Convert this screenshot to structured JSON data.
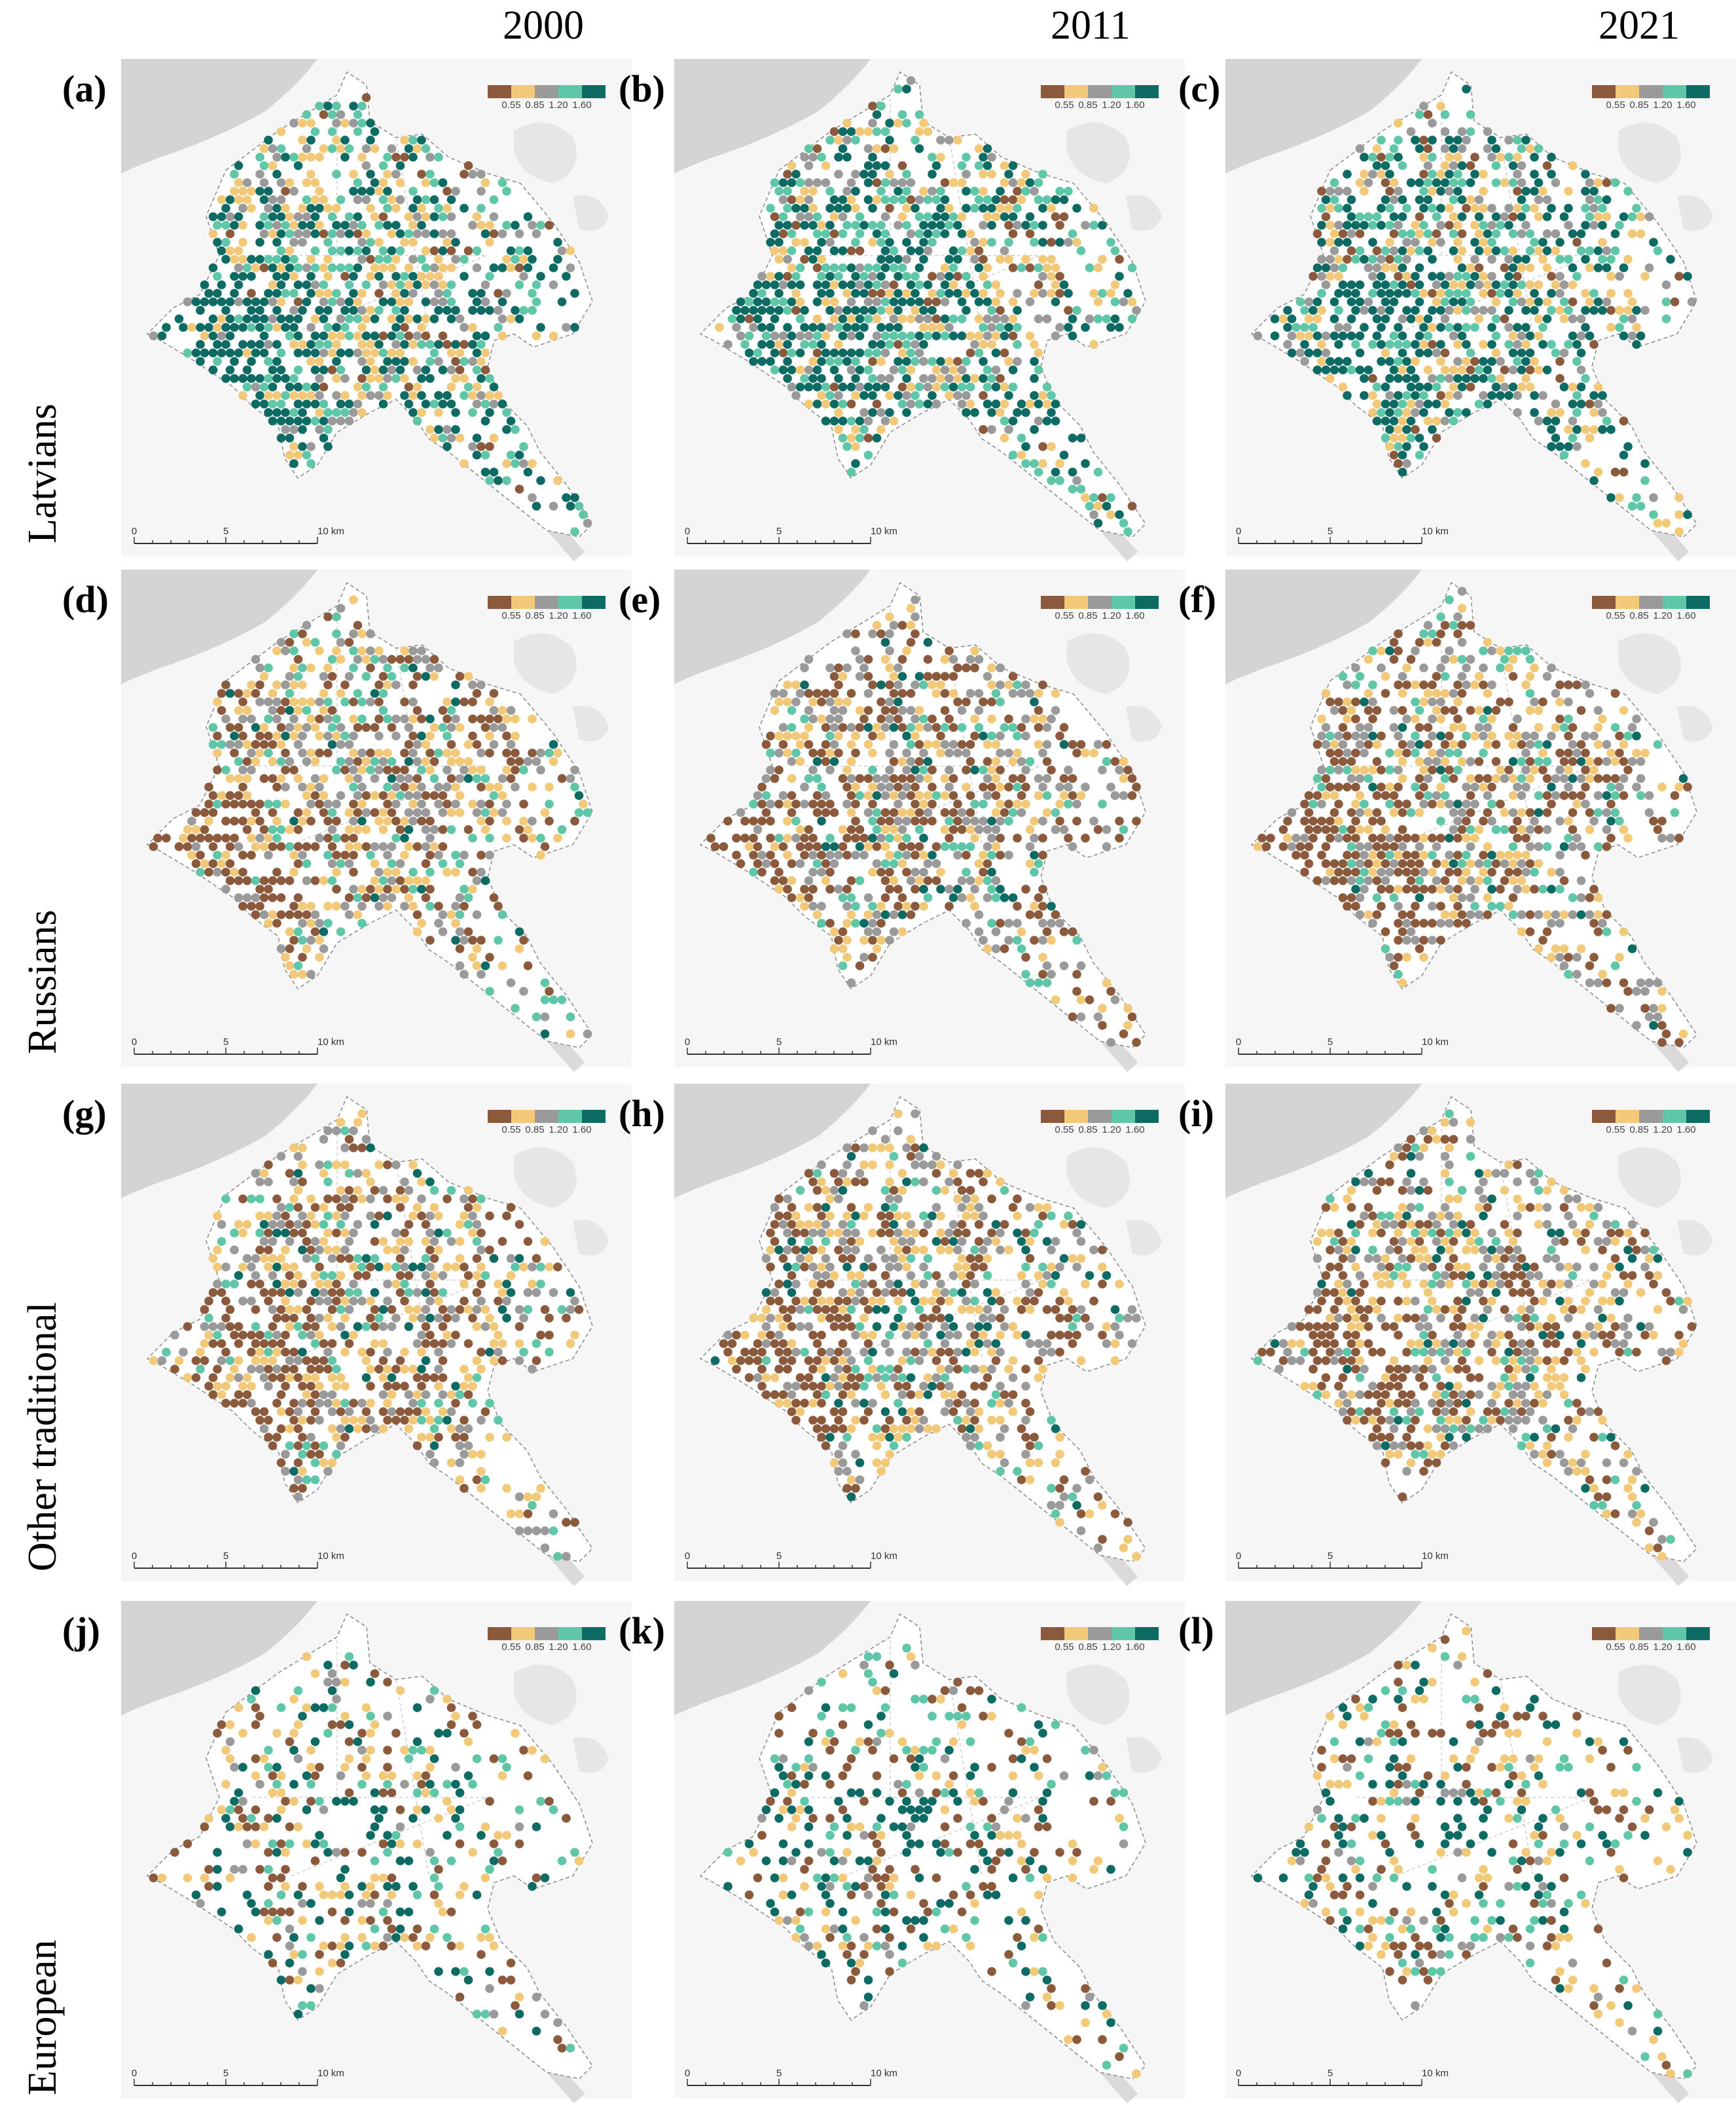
{
  "years": [
    "2000",
    "2011",
    "2021"
  ],
  "groups": [
    "Latvians",
    "Russians",
    "Other traditional",
    "European"
  ],
  "panel_letters": [
    "(a)",
    "(b)",
    "(c)",
    "(d)",
    "(e)",
    "(f)",
    "(g)",
    "(h)",
    "(i)",
    "(j)",
    "(k)",
    "(l)"
  ],
  "legend": {
    "ticks": [
      "0.55",
      "0.85",
      "1.20",
      "1.60"
    ],
    "colors": [
      "#8b5a3c",
      "#f2c879",
      "#9a9a9a",
      "#5fc7a8",
      "#0d6b64"
    ]
  },
  "scale_bar": {
    "labels": [
      "0",
      "5",
      "10 km"
    ]
  },
  "map_colors": {
    "water": "#d4d4d4",
    "land": "#f6f6f6",
    "city": "#ffffff",
    "green": "#e6e6e6"
  }
}
